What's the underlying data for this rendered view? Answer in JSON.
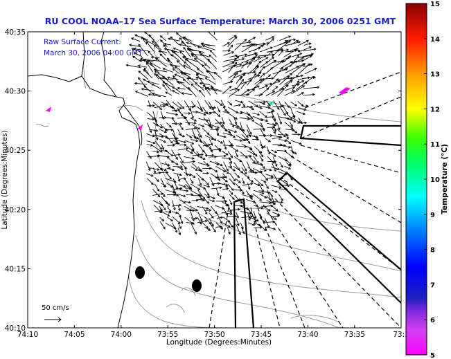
{
  "title": "RU COOL  NOAA–17  Sea Surface Temperature:  March 30, 2006 0251 GMT",
  "annotation": {
    "line1": "Raw Surface Current:",
    "line2": "March 30, 2006 04:00 GMT"
  },
  "scale_label": "50 cm/s",
  "x_axis": {
    "label": "Longitude (Degrees:Minutes)",
    "ticks": [
      "74:10",
      "74:05",
      "74:00",
      "73:55",
      "73:50",
      "73:45",
      "73:40",
      "73:35",
      "73:3"
    ]
  },
  "y_axis": {
    "label": "Latitude (Degrees:Minutes)",
    "ticks": [
      "40:35",
      "40:30",
      "40:25",
      "40:20",
      "40:15",
      "40:10"
    ]
  },
  "colorbar": {
    "label": "Temperature (°C)",
    "ticks": [
      "15",
      "14",
      "13",
      "12",
      "11",
      "10",
      "9",
      "8",
      "7",
      "6",
      "5"
    ],
    "colors": [
      "#8b0000",
      "#ff0000",
      "#ff8c00",
      "#ffff00",
      "#00ff00",
      "#00ffff",
      "#0000ff",
      "#000080",
      "#8a2be2",
      "#ff00ff"
    ]
  },
  "colors": {
    "title": "#1a1acc",
    "coast": "#000000",
    "bathymetry": "#9a9a9a",
    "vectors": "#000000"
  }
}
